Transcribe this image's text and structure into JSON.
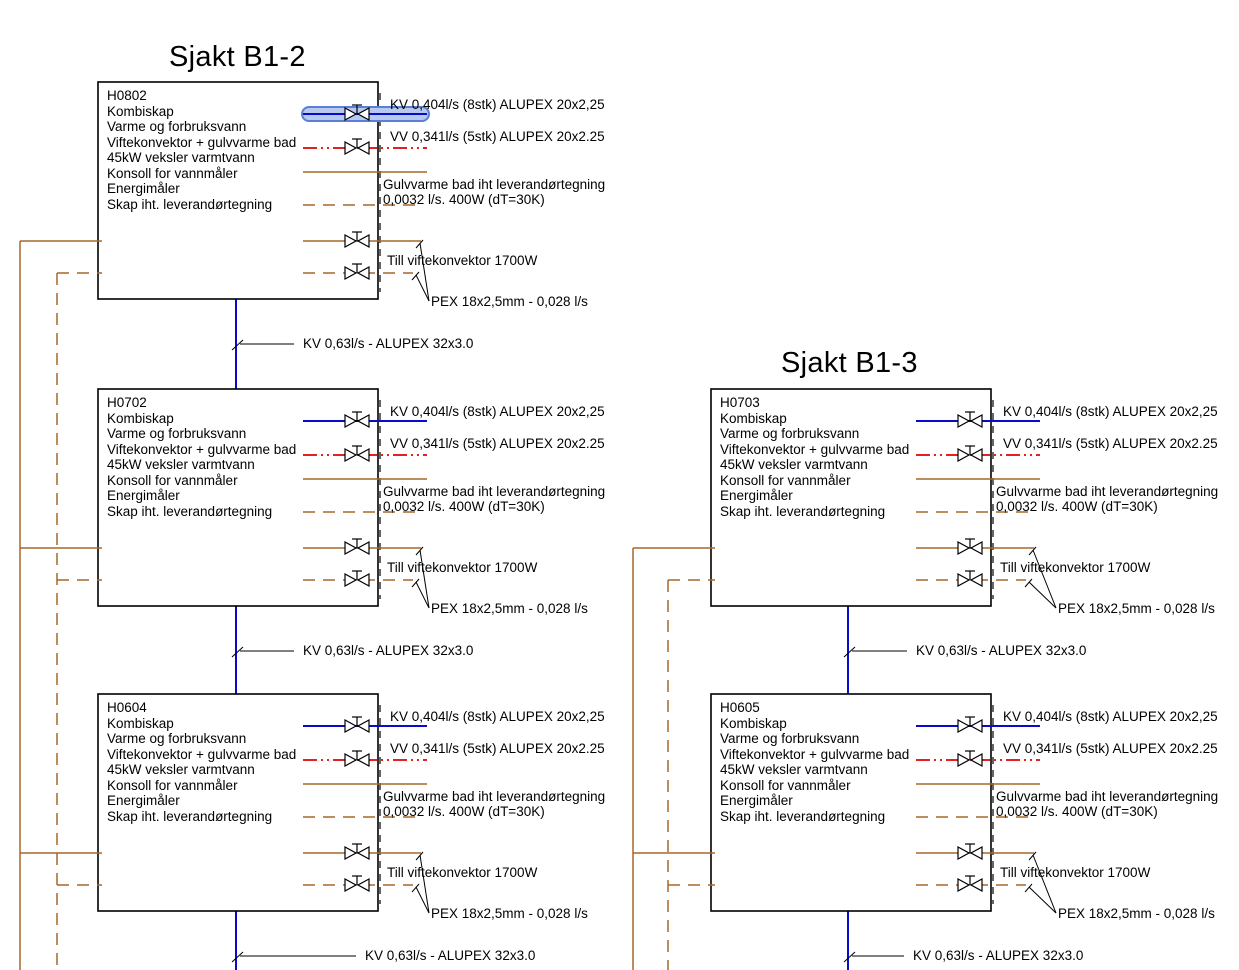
{
  "drawing": {
    "shafts": [
      {
        "title": "Sjakt B1-2",
        "boxes": [
          {
            "lines": [
              "H0802",
              "Kombiskap",
              "Varme og forbruksvann",
              "Viftekonvektor + gulvvarme bad",
              "45kW veksler varmtvann",
              "Konsoll for vannmåler",
              "Energimåler",
              "Skap iht. leverandørtegning"
            ]
          },
          {
            "lines": [
              "H0702",
              "Kombiskap",
              "Varme og forbruksvann",
              "Viftekonvektor + gulvvarme bad",
              "45kW veksler varmtvann",
              "Konsoll for vannmåler",
              "Energimåler",
              "Skap iht. leverandørtegning"
            ]
          },
          {
            "lines": [
              "H0604",
              "Kombiskap",
              "Varme og forbruksvann",
              "Viftekonvektor + gulvvarme bad",
              "45kW veksler varmtvann",
              "Konsoll for vannmåler",
              "Energimåler",
              "Skap iht. leverandørtegning"
            ]
          }
        ]
      },
      {
        "title": "Sjakt B1-3",
        "boxes": [
          {
            "lines": [
              "H0703",
              "Kombiskap",
              "Varme og forbruksvann",
              "Viftekonvektor + gulvvarme bad",
              "45kW veksler varmtvann",
              "Konsoll for vannmåler",
              "Energimåler",
              "Skap iht. leverandørtegning"
            ]
          },
          {
            "lines": [
              "H0605",
              "Kombiskap",
              "Varme og forbruksvann",
              "Viftekonvektor + gulvvarme bad",
              "45kW veksler varmtvann",
              "Konsoll for vannmåler",
              "Energimåler",
              "Skap iht. leverandørtegning"
            ]
          }
        ]
      }
    ],
    "pipe_labels": {
      "kv": "KV 0,404l/s (8stk) ALUPEX 20x2,25",
      "vv": "VV 0,341l/s (5stk) ALUPEX 20x2.25",
      "gulvvarme_line1": "Gulvvarme bad iht leverandørtegning",
      "gulvvarme_line2": "0,0032 l/s. 400W (dT=30K)",
      "viftekonvektor": "Till viftekonvektor 1700W",
      "pex": "PEX 18x2,5mm - 0,028 l/s",
      "riser": "KV 0,63l/s - ALUPEX 32x3.0"
    },
    "colors": {
      "kv_blue": "#0a0acd",
      "vv_red": "#e00000",
      "pipe_brown": "#a5682a",
      "line_black": "#000000",
      "selection_fill": "#b7c9ef",
      "selection_border": "#5b7ed7"
    }
  }
}
